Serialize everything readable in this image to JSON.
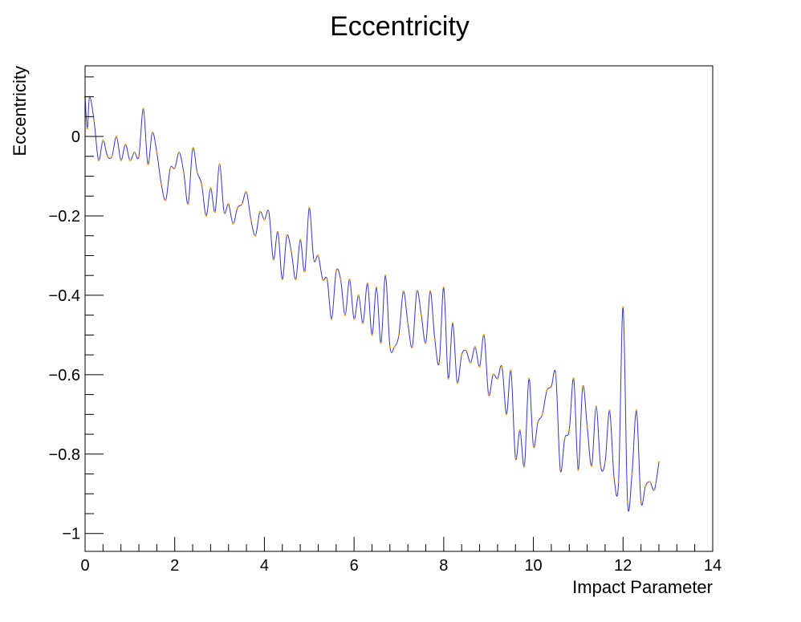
{
  "chart_data": {
    "type": "line",
    "title": "Eccentricity",
    "xlabel": "Impact Parameter",
    "ylabel": "Eccentricity",
    "xlim": [
      0,
      14
    ],
    "ylim": [
      -1.045,
      0.178
    ],
    "x_ticks": [
      0,
      2,
      4,
      6,
      8,
      10,
      12,
      14
    ],
    "x_tick_labels": [
      "0",
      "2",
      "4",
      "6",
      "8",
      "10",
      "12",
      "14"
    ],
    "y_ticks": [
      0,
      -0.2,
      -0.4,
      -0.6,
      -0.8,
      -1
    ],
    "y_tick_labels": [
      "0",
      "−0.2",
      "−0.4",
      "−0.6",
      "−0.8",
      "−1"
    ],
    "grid": false,
    "legend": "none",
    "line_color": "#3333dd",
    "marker_color": "#ffa500",
    "series": [
      {
        "x": [
          0.0,
          0.05,
          0.1,
          0.2,
          0.3,
          0.4,
          0.5,
          0.6,
          0.7,
          0.8,
          0.9,
          1.0,
          1.1,
          1.2,
          1.3,
          1.4,
          1.5,
          1.6,
          1.7,
          1.8,
          1.9,
          2.0,
          2.1,
          2.2,
          2.3,
          2.4,
          2.5,
          2.6,
          2.7,
          2.8,
          2.9,
          3.0,
          3.1,
          3.2,
          3.3,
          3.4,
          3.5,
          3.6,
          3.7,
          3.8,
          3.9,
          4.0,
          4.1,
          4.2,
          4.3,
          4.4,
          4.5,
          4.6,
          4.7,
          4.8,
          4.9,
          5.0,
          5.1,
          5.2,
          5.3,
          5.4,
          5.5,
          5.6,
          5.7,
          5.8,
          5.9,
          6.0,
          6.1,
          6.2,
          6.3,
          6.4,
          6.5,
          6.6,
          6.7,
          6.8,
          6.9,
          7.0,
          7.1,
          7.2,
          7.3,
          7.4,
          7.5,
          7.6,
          7.7,
          7.8,
          7.9,
          8.0,
          8.1,
          8.2,
          8.3,
          8.4,
          8.5,
          8.6,
          8.7,
          8.8,
          8.9,
          9.0,
          9.1,
          9.2,
          9.3,
          9.4,
          9.5,
          9.6,
          9.7,
          9.8,
          9.9,
          10.0,
          10.1,
          10.2,
          10.3,
          10.4,
          10.5,
          10.6,
          10.7,
          10.8,
          10.9,
          11.0,
          11.1,
          11.2,
          11.3,
          11.4,
          11.5,
          11.6,
          11.7,
          11.8,
          11.9,
          12.0,
          12.1,
          12.2,
          12.3,
          12.4,
          12.5,
          12.6,
          12.7,
          12.8
        ],
        "y": [
          0.1,
          0.02,
          0.1,
          0.04,
          -0.06,
          -0.01,
          -0.05,
          -0.05,
          0.0,
          -0.06,
          -0.02,
          -0.06,
          -0.04,
          -0.05,
          0.07,
          -0.07,
          0.01,
          -0.04,
          -0.12,
          -0.16,
          -0.08,
          -0.08,
          -0.04,
          -0.09,
          -0.17,
          -0.03,
          -0.09,
          -0.12,
          -0.2,
          -0.13,
          -0.19,
          -0.07,
          -0.19,
          -0.17,
          -0.22,
          -0.18,
          -0.17,
          -0.14,
          -0.21,
          -0.25,
          -0.19,
          -0.21,
          -0.19,
          -0.31,
          -0.24,
          -0.36,
          -0.25,
          -0.29,
          -0.36,
          -0.26,
          -0.34,
          -0.18,
          -0.31,
          -0.3,
          -0.36,
          -0.36,
          -0.46,
          -0.34,
          -0.36,
          -0.45,
          -0.36,
          -0.46,
          -0.4,
          -0.47,
          -0.37,
          -0.5,
          -0.38,
          -0.52,
          -0.35,
          -0.53,
          -0.53,
          -0.5,
          -0.39,
          -0.47,
          -0.53,
          -0.39,
          -0.45,
          -0.52,
          -0.39,
          -0.51,
          -0.57,
          -0.38,
          -0.61,
          -0.47,
          -0.62,
          -0.55,
          -0.54,
          -0.57,
          -0.53,
          -0.58,
          -0.5,
          -0.65,
          -0.6,
          -0.61,
          -0.58,
          -0.7,
          -0.59,
          -0.81,
          -0.74,
          -0.83,
          -0.61,
          -0.78,
          -0.72,
          -0.7,
          -0.64,
          -0.63,
          -0.6,
          -0.84,
          -0.76,
          -0.74,
          -0.61,
          -0.84,
          -0.63,
          -0.73,
          -0.83,
          -0.68,
          -0.83,
          -0.82,
          -0.69,
          -0.86,
          -0.87,
          -0.43,
          -0.92,
          -0.85,
          -0.69,
          -0.92,
          -0.88,
          -0.87,
          -0.89,
          -0.82
        ]
      }
    ]
  }
}
